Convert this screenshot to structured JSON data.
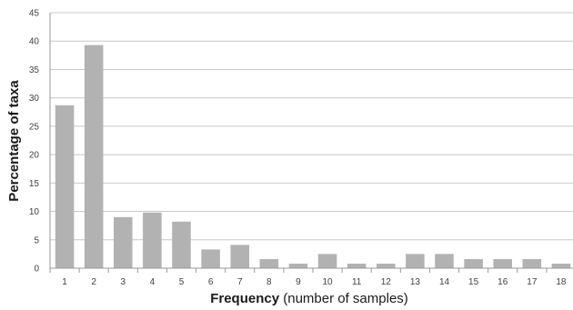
{
  "chart_data": {
    "type": "bar",
    "categories": [
      "1",
      "2",
      "3",
      "4",
      "5",
      "6",
      "7",
      "8",
      "9",
      "10",
      "11",
      "12",
      "13",
      "14",
      "15",
      "16",
      "17",
      "18"
    ],
    "values": [
      28.7,
      39.3,
      9.0,
      9.8,
      8.2,
      3.3,
      4.1,
      1.6,
      0.8,
      2.5,
      0.8,
      0.8,
      2.5,
      2.5,
      1.6,
      1.6,
      1.6,
      0.8
    ],
    "ylim": [
      0,
      45
    ],
    "yticks": [
      0,
      5,
      10,
      15,
      20,
      25,
      30,
      35,
      40,
      45
    ],
    "xlabel_bold": "Frequency",
    "xlabel_rest": " (number of samples)",
    "ylabel": "Percentage of taxa",
    "grid": true,
    "bar_color": "#b2b2b2",
    "grid_color": "#c8c8c8"
  }
}
